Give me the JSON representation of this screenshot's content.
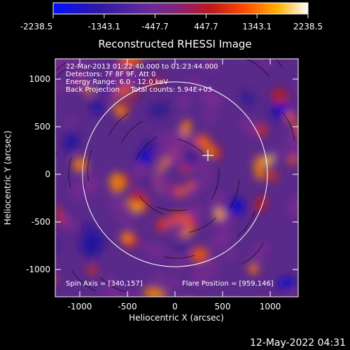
{
  "colorbar": {
    "tick_labels": [
      "-2238.5",
      "-1343.1",
      "-447.7",
      "447.7",
      "1343.1",
      "2238.5"
    ]
  },
  "plot": {
    "title": "Reconstructed RHESSI Image",
    "xlabel": "Heliocentric X (arcsec)",
    "ylabel": "Heliocentric Y (arcsec)",
    "x_tick_labels": [
      "-1000",
      "-500",
      "0",
      "500",
      "1000"
    ],
    "y_tick_labels": [
      "1000",
      "500",
      "0",
      "-500",
      "-1000"
    ],
    "info_lines": [
      "22-Mar-2013 01:22:40.000 to 01:23:44.000",
      "Detectors: 7F 8F 9F, Att 0",
      "Energy Range: 6.0 - 12.0 keV",
      "Back Projection     Total counts: 5.94E+03"
    ],
    "spin_axis": "Spin Axis = [340,157]",
    "flare_position": "Flare Position = [959,146]"
  },
  "footer": {
    "timestamp": "12-May-2022 04:31"
  },
  "colors": {
    "background": "#000000",
    "text": "#ffffff",
    "colormap": [
      "#0000ff",
      "#2a1590",
      "#5a2aa0",
      "#7a2a90",
      "#a02020",
      "#e03010",
      "#ff7a00",
      "#ffd020",
      "#ffffff"
    ]
  }
}
